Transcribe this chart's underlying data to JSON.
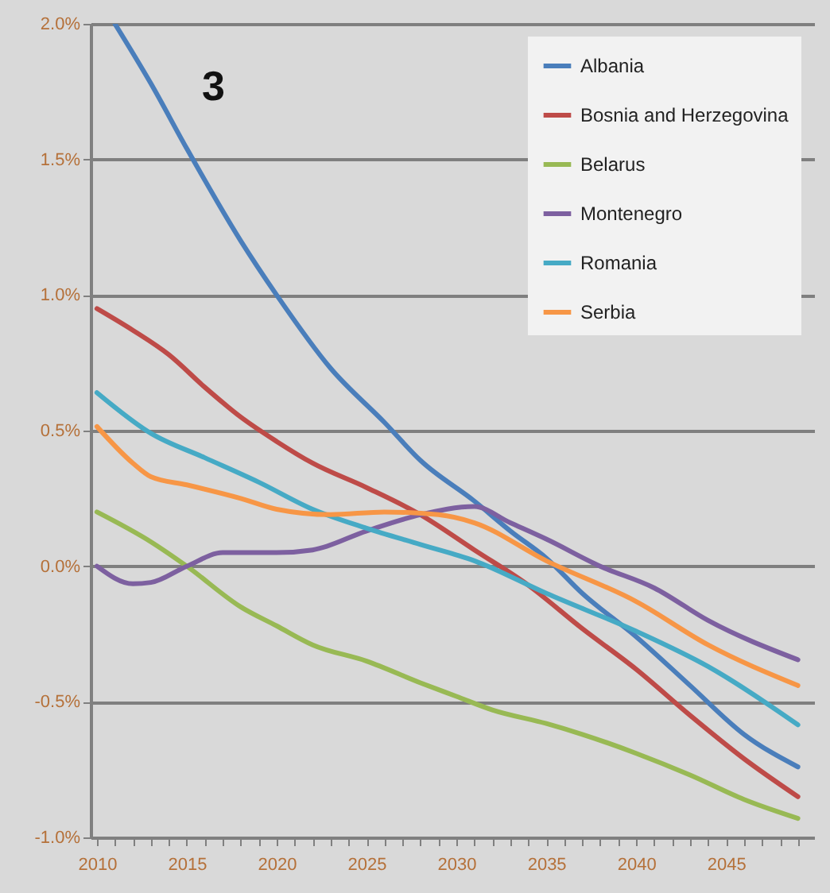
{
  "chart_data": {
    "type": "line",
    "annotations": [
      "3"
    ],
    "xlim": [
      2009.65,
      2049.9
    ],
    "xticks": [
      2010,
      {
        "value": 2011,
        "label": null
      },
      {
        "value": 2012,
        "label": null
      },
      {
        "value": 2013,
        "label": null
      },
      {
        "value": 2014,
        "label": null
      },
      2015,
      {
        "value": 2016,
        "label": null
      },
      {
        "value": 2017,
        "label": null
      },
      {
        "value": 2018,
        "label": null
      },
      {
        "value": 2019,
        "label": null
      },
      2020,
      {
        "value": 2021,
        "label": null
      },
      {
        "value": 2022,
        "label": null
      },
      {
        "value": 2023,
        "label": null
      },
      {
        "value": 2024,
        "label": null
      },
      2025,
      {
        "value": 2026,
        "label": null
      },
      {
        "value": 2027,
        "label": null
      },
      {
        "value": 2028,
        "label": null
      },
      {
        "value": 2029,
        "label": null
      },
      2030,
      {
        "value": 2031,
        "label": null
      },
      {
        "value": 2032,
        "label": null
      },
      {
        "value": 2033,
        "label": null
      },
      {
        "value": 2034,
        "label": null
      },
      2035,
      {
        "value": 2036,
        "label": null
      },
      {
        "value": 2037,
        "label": null
      },
      {
        "value": 2038,
        "label": null
      },
      {
        "value": 2039,
        "label": null
      },
      2040,
      {
        "value": 2041,
        "label": null
      },
      {
        "value": 2042,
        "label": null
      },
      {
        "value": 2043,
        "label": null
      },
      {
        "value": 2044,
        "label": null
      },
      2045,
      {
        "value": 2046,
        "label": null
      },
      {
        "value": 2047,
        "label": null
      },
      {
        "value": 2048,
        "label": null
      },
      {
        "value": 2049,
        "label": null
      }
    ],
    "ylim": [
      -1.0,
      2.0
    ],
    "yticks": [
      {
        "value": -1.0,
        "label": "-1.0%"
      },
      {
        "value": -0.5,
        "label": "-0.5%"
      },
      {
        "value": 0,
        "label": "0.0%"
      },
      {
        "value": 0.5,
        "label": "0.5%"
      },
      {
        "value": 1.0,
        "label": "1.0%"
      },
      {
        "value": 1.5,
        "label": "1.5%"
      },
      {
        "value": 2.0,
        "label": "2.0%"
      }
    ],
    "grid": "y",
    "legend": "top right",
    "line_style": "solid",
    "series": [
      {
        "name": "Albania",
        "color": "#4a7ebb",
        "x": [
          2011,
          2013,
          2015,
          2018,
          2020,
          2023,
          2026,
          2028,
          2031,
          2033,
          2035,
          2037,
          2040,
          2043,
          2046,
          2049
        ],
        "values": [
          2.0,
          1.78,
          1.54,
          1.2,
          1.0,
          0.73,
          0.53,
          0.39,
          0.24,
          0.13,
          0.03,
          -0.1,
          -0.26,
          -0.44,
          -0.62,
          -0.74
        ]
      },
      {
        "name": "Bosnia and Herzegovina",
        "color": "#be4b48",
        "x": [
          2010,
          2012,
          2014,
          2016,
          2018,
          2020,
          2022,
          2025,
          2028,
          2031,
          2034,
          2037,
          2040,
          2043,
          2046,
          2049
        ],
        "values": [
          0.95,
          0.87,
          0.78,
          0.66,
          0.55,
          0.46,
          0.38,
          0.29,
          0.19,
          0.06,
          -0.07,
          -0.23,
          -0.38,
          -0.55,
          -0.71,
          -0.85
        ]
      },
      {
        "name": "Belarus",
        "color": "#98b954",
        "x": [
          2010,
          2013,
          2015,
          2018,
          2020,
          2022,
          2025,
          2028,
          2030,
          2032,
          2035,
          2037,
          2040,
          2043,
          2046,
          2049
        ],
        "values": [
          0.2,
          0.09,
          0.0,
          -0.15,
          -0.22,
          -0.29,
          -0.35,
          -0.43,
          -0.48,
          -0.53,
          -0.58,
          -0.62,
          -0.69,
          -0.77,
          -0.86,
          -0.93
        ]
      },
      {
        "name": "Montenegro",
        "color": "#7d60a0",
        "x": [
          2010,
          2012,
          2013,
          2015,
          2017,
          2020,
          2022,
          2025,
          2028,
          2031,
          2033,
          2035,
          2038,
          2041,
          2044,
          2049
        ],
        "values": [
          0.0,
          -0.065,
          -0.06,
          0.0,
          0.05,
          0.05,
          0.06,
          0.13,
          0.19,
          0.22,
          0.16,
          0.1,
          0.0,
          -0.08,
          -0.2,
          -0.345
        ]
      },
      {
        "name": "Romania",
        "color": "#46aac5",
        "x": [
          2010,
          2013,
          2016,
          2019,
          2022,
          2025,
          2028,
          2031,
          2035,
          2040,
          2044,
          2049
        ],
        "values": [
          0.64,
          0.49,
          0.4,
          0.31,
          0.21,
          0.14,
          0.08,
          0.02,
          -0.1,
          -0.24,
          -0.37,
          -0.585
        ]
      },
      {
        "name": "Serbia",
        "color": "#f79646",
        "x": [
          2010,
          2012,
          2013,
          2015,
          2018,
          2020,
          2023,
          2026,
          2029,
          2031,
          2035,
          2040,
          2044,
          2049
        ],
        "values": [
          0.515,
          0.38,
          0.33,
          0.3,
          0.25,
          0.21,
          0.19,
          0.2,
          0.19,
          0.16,
          0.02,
          -0.13,
          -0.29,
          -0.44
        ]
      }
    ]
  }
}
